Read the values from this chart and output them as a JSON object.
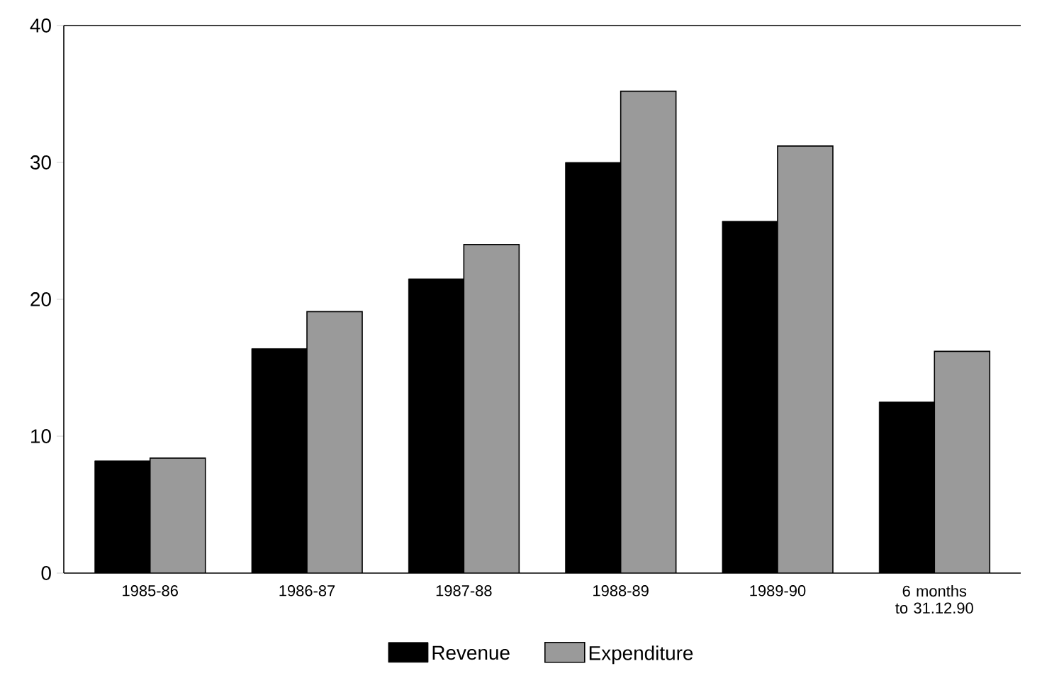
{
  "chart_data": {
    "type": "bar",
    "categories": [
      "1985-86",
      "1986-87",
      "1987-88",
      "1988-89",
      "1989-90",
      "6 months to 31.12.90"
    ],
    "series": [
      {
        "name": "Revenue",
        "color": "#000000",
        "values": [
          8.2,
          16.4,
          21.5,
          30.0,
          25.7,
          12.5
        ]
      },
      {
        "name": "Expenditure",
        "color": "#9a9a9a",
        "values": [
          8.4,
          19.1,
          24.0,
          35.2,
          31.2,
          16.2
        ]
      }
    ],
    "ylim": [
      0,
      40
    ],
    "yticks": [
      0,
      10,
      20,
      30,
      40
    ],
    "grid": false,
    "legend": "bottom"
  }
}
